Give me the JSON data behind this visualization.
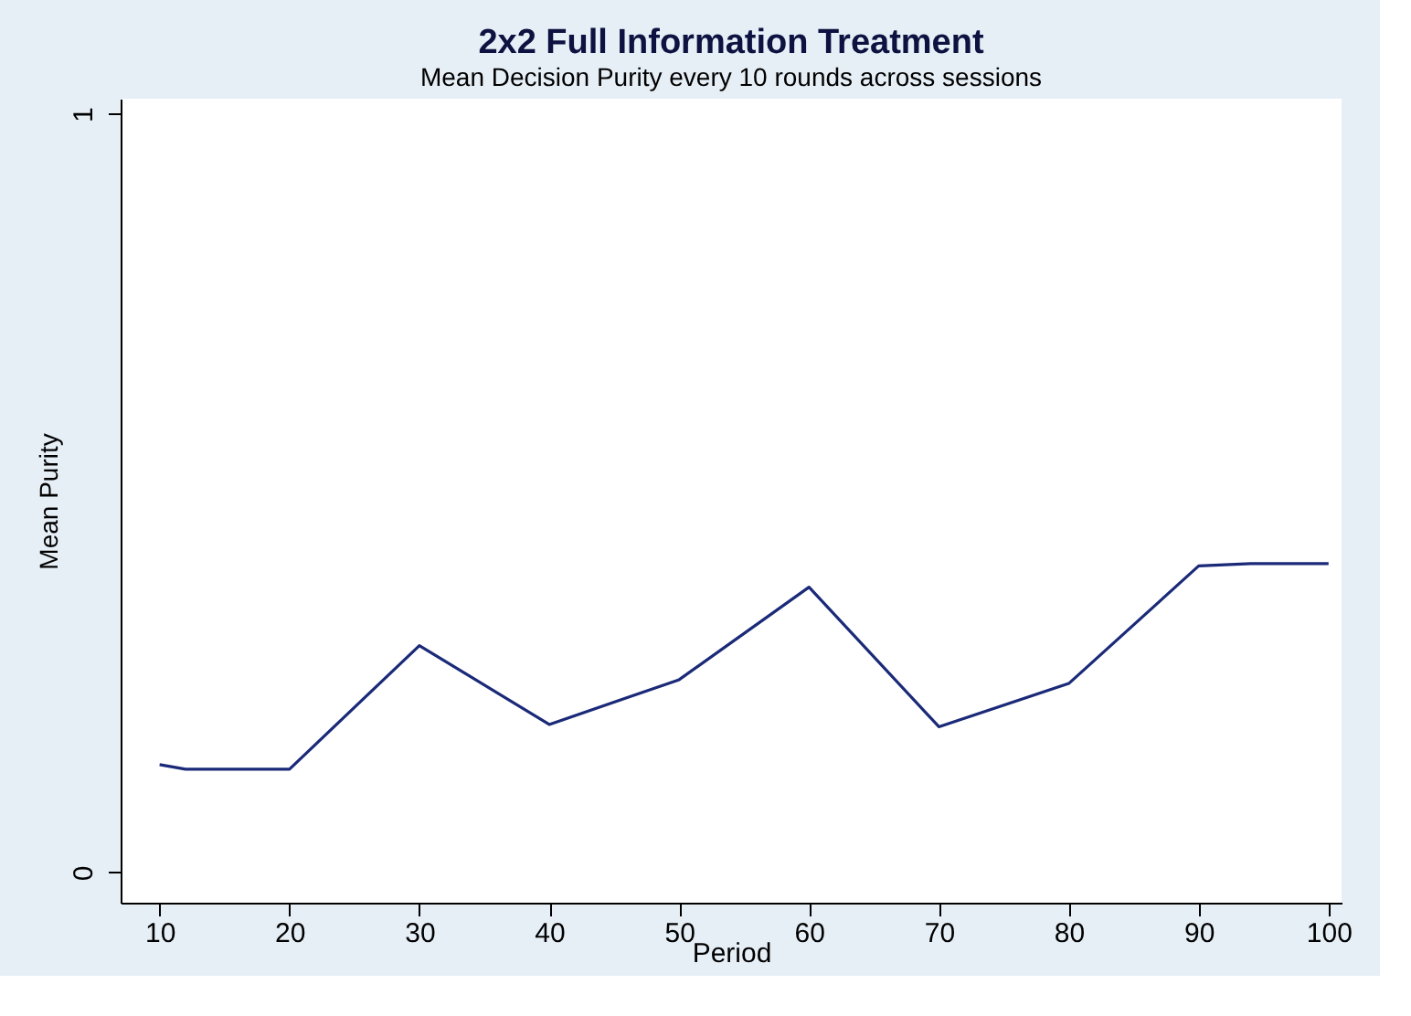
{
  "chart_data": {
    "type": "line",
    "title": "2x2 Full Information Treatment",
    "subtitle": "Mean Decision Purity every 10 rounds across sessions",
    "xlabel": "Period",
    "ylabel": "Mean Purity",
    "x": [
      10,
      12,
      20,
      30,
      40,
      50,
      60,
      70,
      80,
      90,
      94,
      100
    ],
    "series": [
      {
        "color": "#1a2a78",
        "values": [
          0.142,
          0.136,
          0.136,
          0.299,
          0.195,
          0.254,
          0.376,
          0.192,
          0.249,
          0.404,
          0.407,
          0.407
        ]
      }
    ],
    "xlim": [
      7,
      101
    ],
    "xticks": [
      10,
      20,
      30,
      40,
      50,
      60,
      70,
      80,
      90,
      100
    ],
    "ylim": [
      -0.04,
      1.02
    ],
    "yticks": [
      0,
      1
    ],
    "grid": false,
    "marker": "none",
    "line_style": "solid"
  }
}
